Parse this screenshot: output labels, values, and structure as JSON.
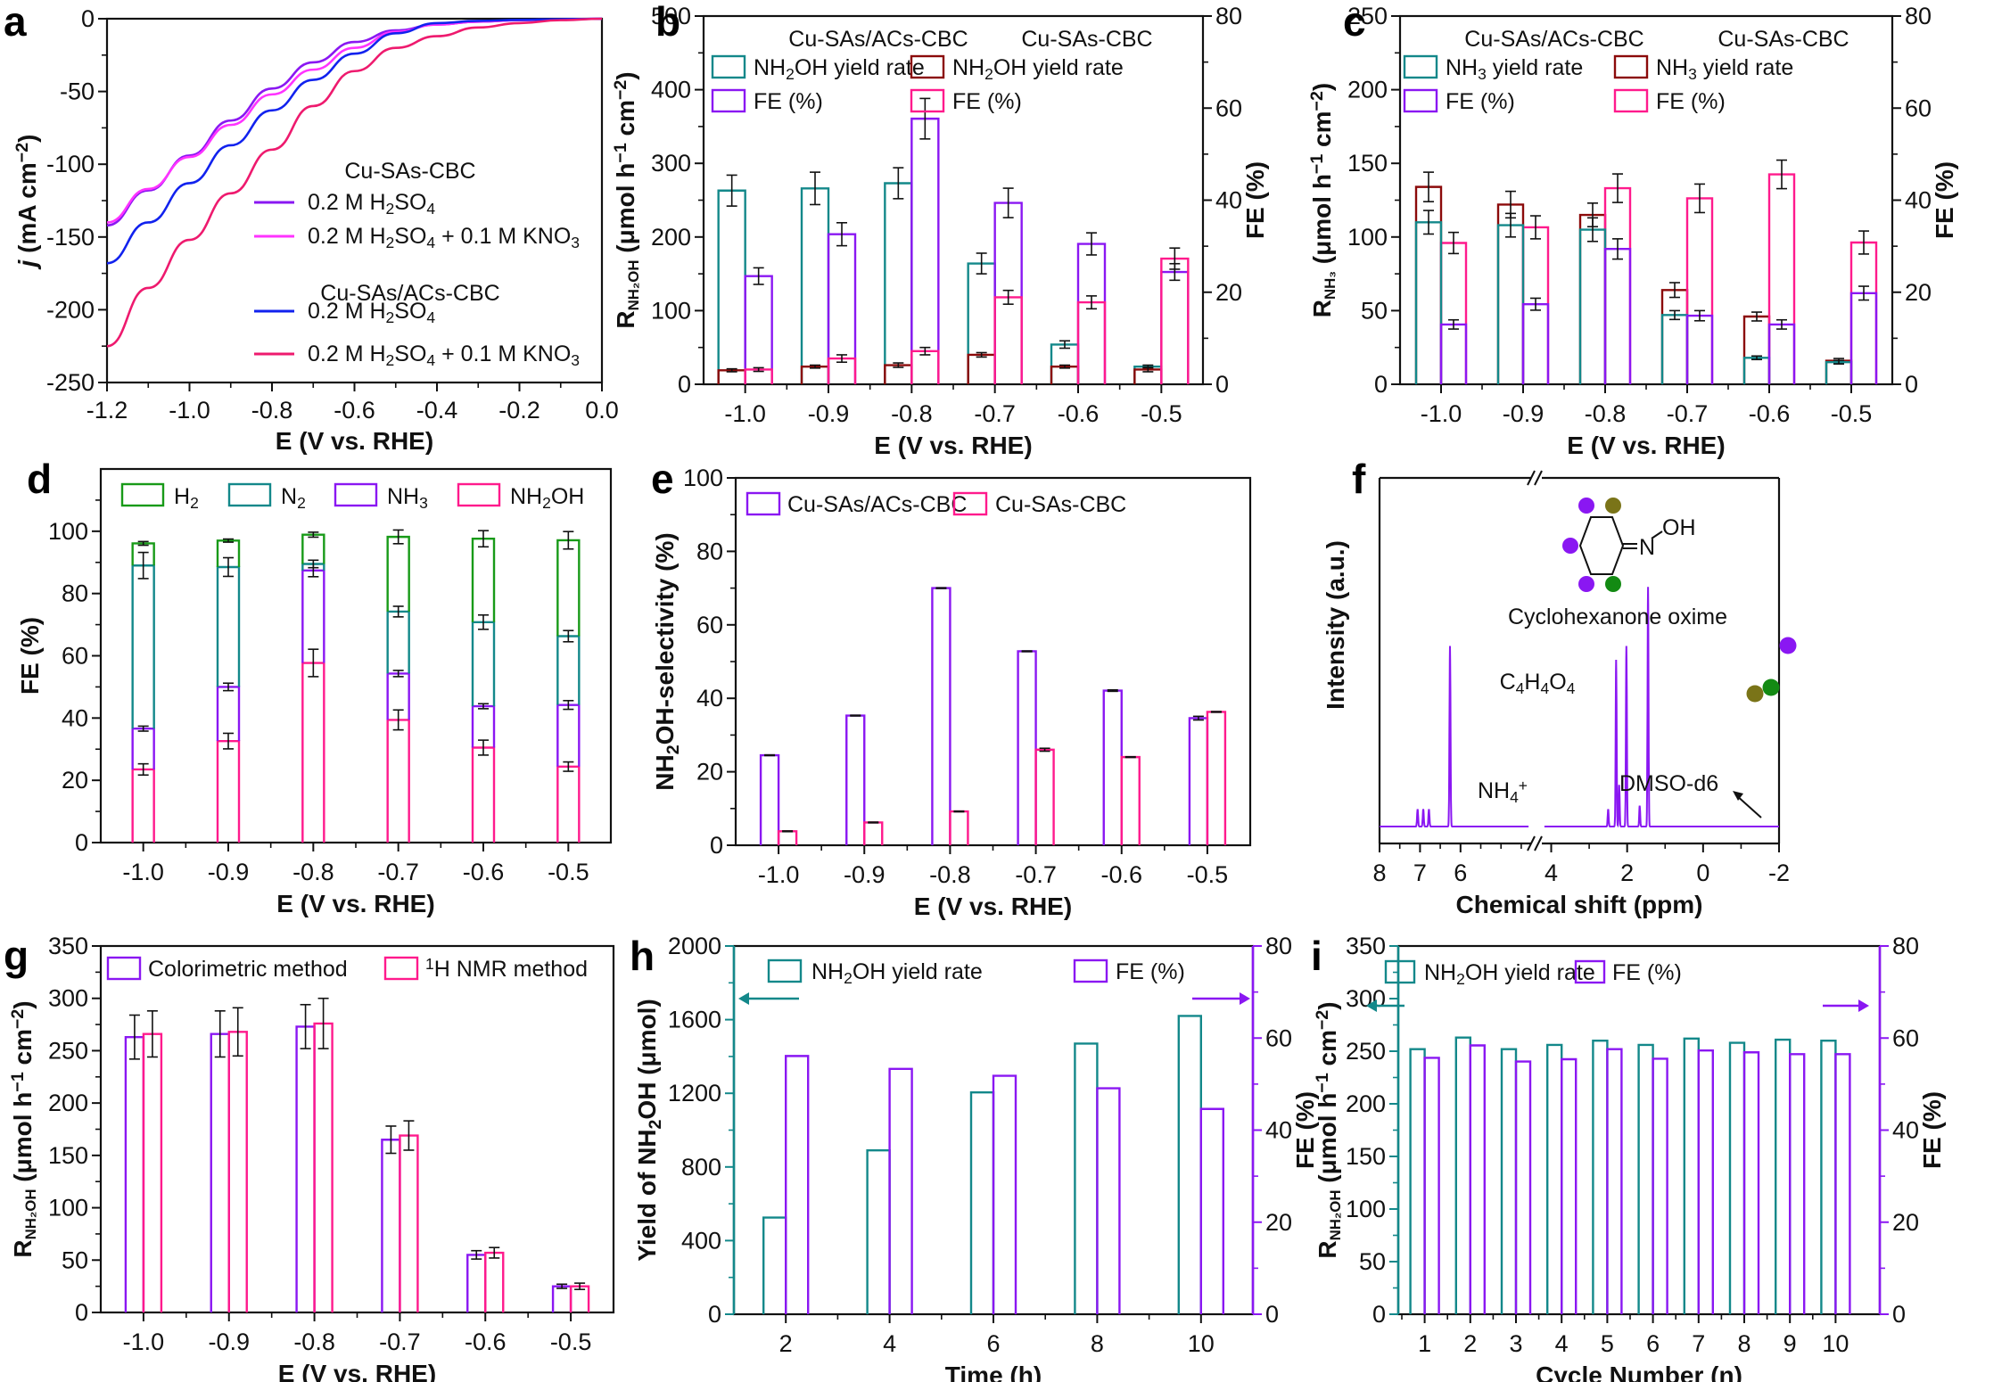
{
  "figure": {
    "colors": {
      "teal": "#13888a",
      "purple": "#8a17f2",
      "pink": "#ff1a8c",
      "magenta": "#ff33ff",
      "blue": "#1122ee",
      "crimson": "#ee1a6e",
      "darkred": "#8b0a0a",
      "green": "#189a18",
      "olive": "#7a7418",
      "nmr_green": "#138a13",
      "axis": "#111111"
    }
  },
  "chart_data": [
    {
      "id": "a",
      "panel_label": "a",
      "type": "line",
      "title": "",
      "xlabel": "E (V vs. RHE)",
      "ylabel": "j (mA cm⁻²)",
      "xlim": [
        -1.2,
        0.0
      ],
      "ylim": [
        -250,
        0
      ],
      "xticks": [
        "-1.2",
        "-1.0",
        "-0.8",
        "-0.6",
        "-0.4",
        "-0.2",
        "0.0"
      ],
      "yticks": [
        "0",
        "-50",
        "-100",
        "-150",
        "-200",
        "-250"
      ],
      "legend_groups": [
        {
          "title": "Cu-SAs-CBC",
          "color_key": "purple",
          "entries": [
            "0.2 M H₂SO₄",
            "0.2 M H₂SO₄ + 0.1 M KNO₃"
          ]
        },
        {
          "title": "Cu-SAs/ACs-CBC",
          "color_key": "crimson",
          "entries": [
            "0.2 M H₂SO₄",
            "0.2 M H₂SO₄ + 0.1 M KNO₃"
          ]
        }
      ],
      "x": [
        -1.2,
        -1.1,
        -1.0,
        -0.9,
        -0.8,
        -0.7,
        -0.6,
        -0.5,
        -0.4,
        -0.3,
        -0.2,
        -0.1,
        0.0
      ],
      "series": [
        {
          "name": "Cu-SAs-CBC, 0.2 M H₂SO₄",
          "color_key": "purple",
          "values": [
            -142,
            -118,
            -94,
            -70,
            -48,
            -30,
            -16,
            -8,
            -4,
            -2,
            -1,
            -0.5,
            0
          ]
        },
        {
          "name": "Cu-SAs-CBC, 0.2 M H₂SO₄ + 0.1 M KNO₃",
          "color_key": "magenta",
          "values": [
            -140,
            -117,
            -95,
            -73,
            -52,
            -35,
            -20,
            -9,
            -4,
            -2,
            -1,
            -0.5,
            0
          ]
        },
        {
          "name": "Cu-SAs/ACs-CBC, 0.2 M H₂SO₄",
          "color_key": "blue",
          "values": [
            -168,
            -140,
            -113,
            -87,
            -63,
            -42,
            -24,
            -10,
            -3,
            -1.5,
            -0.8,
            -0.3,
            0
          ]
        },
        {
          "name": "Cu-SAs/ACs-CBC, 0.2 M H₂SO₄ + 0.1 M KNO₃",
          "color_key": "crimson",
          "values": [
            -225,
            -185,
            -152,
            -120,
            -90,
            -60,
            -36,
            -20,
            -12,
            -6,
            -3,
            -1,
            0
          ]
        }
      ]
    },
    {
      "id": "b",
      "panel_label": "b",
      "type": "bar",
      "xlabel": "E (V vs. RHE)",
      "ylabel": "R_NH2OH (μmol h⁻¹ cm⁻²)",
      "y2label": "FE (%)",
      "ylim": [
        0,
        500
      ],
      "y2lim": [
        0,
        80
      ],
      "yticks": [
        "0",
        "100",
        "200",
        "300",
        "400",
        "500"
      ],
      "y2ticks": [
        "0",
        "20",
        "40",
        "60",
        "80"
      ],
      "categories": [
        "-1.0",
        "-0.9",
        "-0.8",
        "-0.7",
        "-0.6",
        "-0.5"
      ],
      "legend_groups": [
        {
          "title": "Cu-SAs/ACs-CBC",
          "color_key": "purple",
          "entries": [
            {
              "label": "NH₂OH yield rate",
              "color_key": "teal"
            },
            {
              "label": "FE (%)",
              "color_key": "purple"
            }
          ]
        },
        {
          "title": "Cu-SAs-CBC",
          "color_key": "pink",
          "entries": [
            {
              "label": "NH₂OH yield rate",
              "color_key": "darkred"
            },
            {
              "label": "FE (%)",
              "color_key": "pink"
            }
          ]
        }
      ],
      "series": [
        {
          "name": "Cu-SAs/ACs-CBC NH₂OH yield rate",
          "axis": "left",
          "slot": 0,
          "color_key": "teal",
          "values": [
            263,
            266,
            273,
            164,
            54,
            24
          ],
          "errors": [
            21,
            22,
            21,
            14,
            5,
            2
          ]
        },
        {
          "name": "Cu-SAs-CBC NH₂OH yield rate",
          "axis": "left",
          "slot": 0,
          "color_key": "darkred",
          "values": [
            19,
            24,
            26,
            40,
            24,
            20
          ],
          "errors": [
            2,
            2,
            3,
            3,
            2,
            3
          ]
        },
        {
          "name": "Cu-SAs/ACs-CBC FE (%)",
          "axis": "right",
          "slot": 1,
          "color_key": "purple",
          "values": [
            23.5,
            32.6,
            57.7,
            39.4,
            30.5,
            24.4
          ],
          "errors": [
            1.8,
            2.5,
            4.4,
            3.2,
            2.4,
            1.8
          ]
        },
        {
          "name": "Cu-SAs-CBC FE (%)",
          "axis": "right",
          "slot": 1,
          "color_key": "pink",
          "values": [
            3.2,
            5.6,
            7.2,
            18.9,
            17.8,
            27.3
          ],
          "errors": [
            0.4,
            0.8,
            0.8,
            1.5,
            1.4,
            2.3
          ]
        }
      ]
    },
    {
      "id": "c",
      "panel_label": "c",
      "type": "bar",
      "xlabel": "E (V vs. RHE)",
      "ylabel": "R_NH3 (μmol h⁻¹ cm⁻²)",
      "y2label": "FE (%)",
      "ylim": [
        0,
        250
      ],
      "y2lim": [
        0,
        80
      ],
      "yticks": [
        "0",
        "50",
        "100",
        "150",
        "200",
        "250"
      ],
      "y2ticks": [
        "0",
        "20",
        "40",
        "60",
        "80"
      ],
      "categories": [
        "-1.0",
        "-0.9",
        "-0.8",
        "-0.7",
        "-0.6",
        "-0.5"
      ],
      "legend_groups": [
        {
          "title": "Cu-SAs/ACs-CBC",
          "color_key": "purple",
          "entries": [
            {
              "label": "NH₃ yield rate",
              "color_key": "teal"
            },
            {
              "label": "FE (%)",
              "color_key": "purple"
            }
          ]
        },
        {
          "title": "Cu-SAs-CBC",
          "color_key": "pink",
          "entries": [
            {
              "label": "NH₃ yield rate",
              "color_key": "darkred"
            },
            {
              "label": "FE (%)",
              "color_key": "pink"
            }
          ]
        }
      ],
      "series": [
        {
          "name": "Cu-SAs-CBC NH₃ yield rate",
          "axis": "left",
          "slot": 0,
          "color_key": "darkred",
          "values": [
            134,
            122,
            115,
            64,
            46,
            16
          ],
          "errors": [
            10,
            9,
            8,
            5,
            3,
            1.5
          ]
        },
        {
          "name": "Cu-SAs-CBC FE (%)",
          "axis": "right",
          "slot": 1,
          "color_key": "pink",
          "values": [
            30.7,
            34.1,
            42.6,
            40.4,
            45.6,
            30.8
          ],
          "errors": [
            2.3,
            2.5,
            3.1,
            3.1,
            3.1,
            2.5
          ]
        },
        {
          "name": "Cu-SAs/ACs-CBC NH₃ yield rate",
          "axis": "left",
          "slot": 0,
          "color_key": "teal",
          "values": [
            110,
            108,
            105,
            47,
            18,
            15
          ],
          "errors": [
            8,
            8,
            8,
            3,
            1.2,
            1.2
          ]
        },
        {
          "name": "Cu-SAs/ACs-CBC FE (%)",
          "axis": "right",
          "slot": 1,
          "color_key": "purple",
          "values": [
            13.0,
            17.4,
            29.4,
            14.9,
            13.0,
            19.8
          ],
          "errors": [
            1.0,
            1.3,
            2.2,
            1.1,
            1.0,
            1.5
          ]
        }
      ]
    },
    {
      "id": "d",
      "panel_label": "d",
      "type": "bar",
      "stacked": true,
      "xlabel": "E (V vs. RHE)",
      "ylabel": "FE (%)",
      "ylim": [
        0,
        120
      ],
      "yticks": [
        "0",
        "20",
        "40",
        "60",
        "80",
        "100"
      ],
      "categories": [
        "-1.0",
        "-0.9",
        "-0.8",
        "-0.7",
        "-0.6",
        "-0.5"
      ],
      "legend": [
        {
          "label": "H₂",
          "color_key": "green"
        },
        {
          "label": "N₂",
          "color_key": "teal"
        },
        {
          "label": "NH₃",
          "color_key": "purple"
        },
        {
          "label": "NH₂OH",
          "color_key": "pink"
        }
      ],
      "series": [
        {
          "name": "NH₂OH",
          "color_key": "pink",
          "values": [
            23.5,
            32.6,
            57.7,
            39.4,
            30.5,
            24.4
          ],
          "cumulative": [
            23.5,
            32.6,
            57.7,
            39.4,
            30.5,
            24.4
          ],
          "errors": [
            1.8,
            2.5,
            4.4,
            3.2,
            2.4,
            1.5
          ]
        },
        {
          "name": "NH₃",
          "color_key": "purple",
          "values": [
            13.1,
            17.4,
            29.7,
            14.9,
            13.3,
            19.8
          ],
          "cumulative": [
            36.6,
            50.0,
            87.4,
            54.3,
            43.8,
            44.2
          ],
          "errors": [
            0.8,
            1.2,
            2.0,
            1.0,
            0.8,
            1.4
          ]
        },
        {
          "name": "N₂",
          "color_key": "teal",
          "values": [
            52.4,
            38.5,
            2.1,
            19.9,
            27.0,
            22.1
          ],
          "cumulative": [
            89.0,
            88.5,
            89.5,
            74.2,
            70.8,
            66.3
          ],
          "errors": [
            4.2,
            3.0,
            1.2,
            1.7,
            2.3,
            1.8
          ]
        },
        {
          "name": "H₂",
          "color_key": "green",
          "values": [
            7.1,
            8.5,
            9.4,
            24.0,
            26.8,
            30.8
          ],
          "cumulative": [
            96.1,
            97.0,
            98.9,
            98.2,
            97.6,
            97.1
          ],
          "errors": [
            0.6,
            0.5,
            0.8,
            2.2,
            2.6,
            2.8
          ]
        }
      ]
    },
    {
      "id": "e",
      "panel_label": "e",
      "type": "bar",
      "xlabel": "E (V vs. RHE)",
      "ylabel": "NH₂OH-selectivity (%)",
      "ylim": [
        0,
        100
      ],
      "yticks": [
        "0",
        "20",
        "40",
        "60",
        "80",
        "100"
      ],
      "categories": [
        "-1.0",
        "-0.9",
        "-0.8",
        "-0.7",
        "-0.6",
        "-0.5"
      ],
      "legend": [
        {
          "label": "Cu-SAs/ACs-CBC",
          "color_key": "purple"
        },
        {
          "label": "Cu-SAs-CBC",
          "color_key": "pink"
        }
      ],
      "series": [
        {
          "name": "Cu-SAs/ACs-CBC",
          "color_key": "purple",
          "values": [
            24.5,
            35.3,
            70.0,
            52.8,
            42.1,
            34.6
          ],
          "errors": [
            0.1,
            0.1,
            0.1,
            0.1,
            0.2,
            0.5
          ]
        },
        {
          "name": "Cu-SAs-CBC",
          "color_key": "pink",
          "values": [
            3.8,
            6.2,
            9.2,
            26.0,
            24.0,
            36.3
          ],
          "errors": [
            0.1,
            0.1,
            0.1,
            0.4,
            0.1,
            0.1
          ]
        }
      ]
    },
    {
      "id": "f",
      "panel_label": "f",
      "type": "line",
      "xlabel": "Chemical shift (ppm)",
      "ylabel": "Intensity (a.u.)",
      "xlim": [
        8,
        -2
      ],
      "axis_break": [
        5.0,
        4.2
      ],
      "xticks": [
        "8",
        "7",
        "6",
        "4",
        "2",
        "0",
        "-2"
      ],
      "annotations": {
        "nh4": "NH₄⁺",
        "c4h4o4": "C₄H₄O₄",
        "dmso": "DMSO-d6",
        "molecule": "Cyclohexanone oxime",
        "oh": "OH",
        "n": "N"
      },
      "peaks": [
        {
          "shift": 7.06,
          "height": 0.05,
          "label": "NH₄⁺"
        },
        {
          "shift": 6.92,
          "height": 0.05,
          "label": "NH₄⁺"
        },
        {
          "shift": 6.78,
          "height": 0.05,
          "label": "NH₄⁺"
        },
        {
          "shift": 6.26,
          "height": 0.52,
          "label": "C₄H₄O₄"
        },
        {
          "shift": 2.5,
          "height": 0.05,
          "label": "DMSO-d6"
        },
        {
          "shift": 2.29,
          "height": 0.48,
          "marker_color_key": "olive"
        },
        {
          "shift": 2.21,
          "height": 0.12
        },
        {
          "shift": 2.02,
          "height": 0.52,
          "marker_color_key": "nmr_green"
        },
        {
          "shift": 1.67,
          "height": 0.06
        },
        {
          "shift": 1.45,
          "height": 0.69,
          "marker_color_key": "purple"
        }
      ]
    },
    {
      "id": "g",
      "panel_label": "g",
      "type": "bar",
      "xlabel": "E (V vs. RHE)",
      "ylabel": "R_NH2OH (μmol h⁻¹ cm⁻²)",
      "ylim": [
        0,
        350
      ],
      "yticks": [
        "0",
        "50",
        "100",
        "150",
        "200",
        "250",
        "300",
        "350"
      ],
      "categories": [
        "-1.0",
        "-0.9",
        "-0.8",
        "-0.7",
        "-0.6",
        "-0.5"
      ],
      "legend": [
        {
          "label": "Colorimetric method",
          "color_key": "purple"
        },
        {
          "label": "¹H NMR method",
          "color_key": "pink"
        }
      ],
      "series": [
        {
          "name": "Colorimetric method",
          "color_key": "purple",
          "values": [
            263,
            266,
            273,
            165,
            55,
            25
          ],
          "errors": [
            21,
            22,
            21,
            13,
            4,
            2
          ]
        },
        {
          "name": "¹H NMR method",
          "color_key": "pink",
          "values": [
            266,
            268,
            276,
            169,
            57,
            25
          ],
          "errors": [
            22,
            23,
            24,
            14,
            5,
            3
          ]
        }
      ]
    },
    {
      "id": "h",
      "panel_label": "h",
      "type": "bar",
      "xlabel": "Time (h)",
      "ylabel": "Yield of NH₂OH (μmol)",
      "y2label": "FE (%)",
      "ylim": [
        0,
        2000
      ],
      "y2lim": [
        0,
        80
      ],
      "yticks": [
        "0",
        "400",
        "800",
        "1200",
        "1600",
        "2000"
      ],
      "y2ticks": [
        "0",
        "20",
        "40",
        "60",
        "80"
      ],
      "categories": [
        "2",
        "4",
        "6",
        "8",
        "10"
      ],
      "legend": [
        {
          "label": "NH₂OH yield rate",
          "color_key": "teal"
        },
        {
          "label": "FE (%)",
          "color_key": "purple"
        }
      ],
      "series": [
        {
          "name": "NH₂OH yield",
          "axis": "left",
          "color_key": "teal",
          "values": [
            525,
            890,
            1205,
            1470,
            1620
          ]
        },
        {
          "name": "FE (%)",
          "axis": "right",
          "color_key": "purple",
          "values": [
            56.1,
            53.3,
            51.8,
            49.1,
            44.6
          ]
        }
      ]
    },
    {
      "id": "i",
      "panel_label": "i",
      "type": "bar",
      "xlabel": "Cycle Number (n)",
      "ylabel": "R_NH2OH (μmol h⁻¹ cm⁻²)",
      "y2label": "FE (%)",
      "ylim": [
        0,
        350
      ],
      "y2lim": [
        0,
        80
      ],
      "yticks": [
        "0",
        "50",
        "100",
        "150",
        "200",
        "250",
        "300",
        "350"
      ],
      "y2ticks": [
        "0",
        "20",
        "40",
        "60",
        "80"
      ],
      "categories": [
        "1",
        "2",
        "3",
        "4",
        "5",
        "6",
        "7",
        "8",
        "9",
        "10"
      ],
      "legend": [
        {
          "label": "NH₂OH yield rate",
          "color_key": "teal"
        },
        {
          "label": "FE (%)",
          "color_key": "purple"
        }
      ],
      "series": [
        {
          "name": "NH₂OH yield rate",
          "axis": "left",
          "color_key": "teal",
          "values": [
            252,
            263,
            252,
            256,
            260,
            256,
            262,
            258,
            261,
            260
          ]
        },
        {
          "name": "FE (%)",
          "axis": "right",
          "color_key": "purple",
          "values": [
            55.7,
            58.4,
            54.9,
            55.4,
            57.6,
            55.5,
            57.3,
            56.9,
            56.5,
            56.5
          ]
        }
      ]
    }
  ]
}
